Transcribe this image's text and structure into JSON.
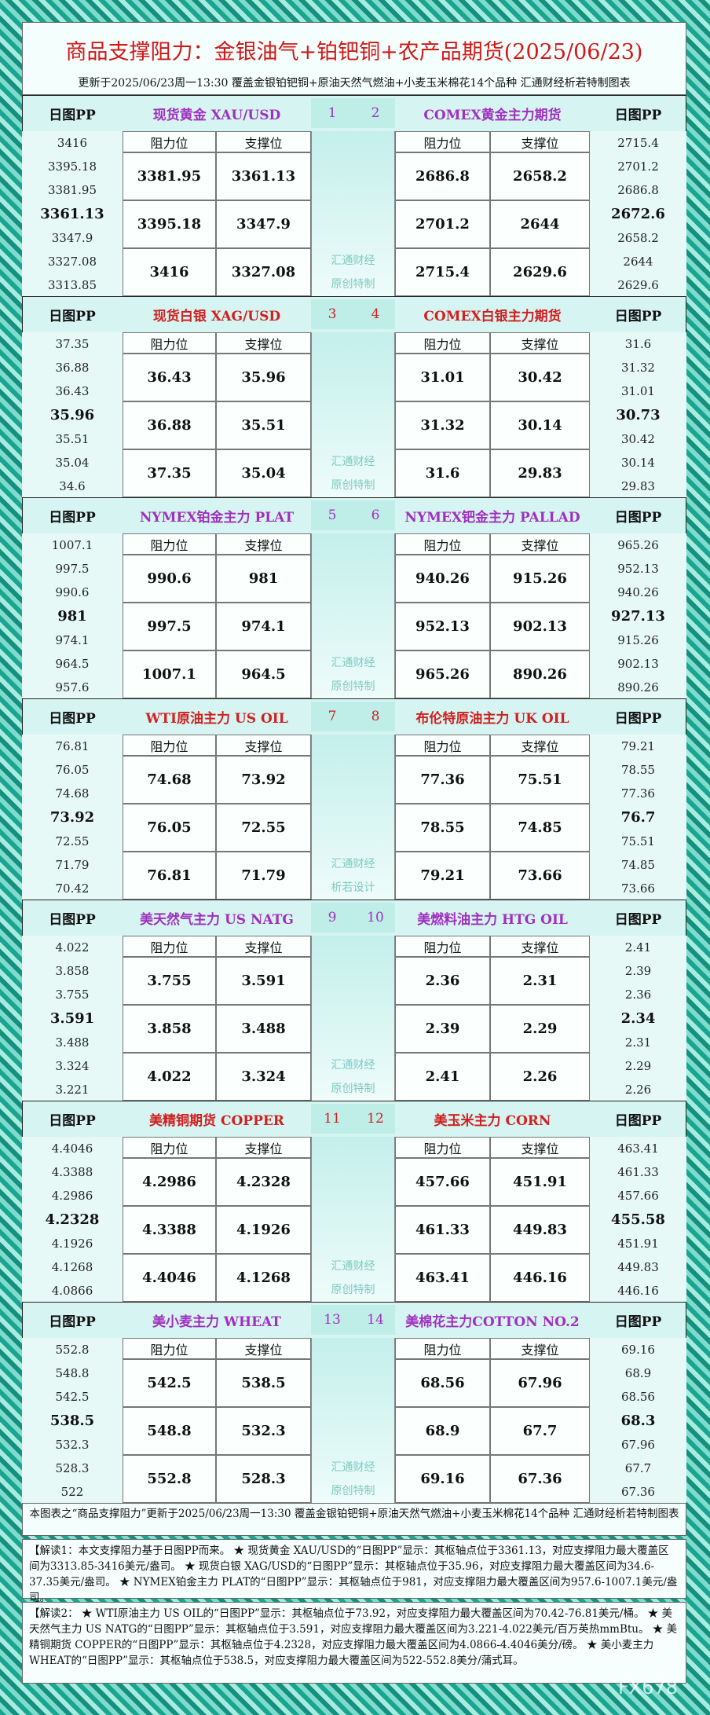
{
  "header": {
    "title": "商品支撑阻力：金银油气+铂钯铜+农产品期货(2025/06/23)",
    "subtitle": "更新于2025/06/23周一13:30 覆盖金银铂钯铜+原油天然气燃油+小麦玉米棉花14个品种 汇通财经析若特制图表"
  },
  "labels": {
    "pp": "日图PP",
    "resistance": "阻力位",
    "support": "支撑位"
  },
  "sections": [
    {
      "color": "#a030c0",
      "numbers": [
        "1",
        "2"
      ],
      "watermark": [
        "汇通财经",
        "原创特制"
      ],
      "left": {
        "name": "现货黄金 XAU/USD",
        "pp": [
          "3416",
          "3395.18",
          "3381.95",
          "3361.13",
          "3347.9",
          "3327.08",
          "3313.85"
        ],
        "rows": [
          [
            "3381.95",
            "3361.13"
          ],
          [
            "3395.18",
            "3347.9"
          ],
          [
            "3416",
            "3327.08"
          ]
        ]
      },
      "right": {
        "name": "COMEX黄金主力期货",
        "pp": [
          "2715.4",
          "2701.2",
          "2686.8",
          "2672.6",
          "2658.2",
          "2644",
          "2629.6"
        ],
        "rows": [
          [
            "2686.8",
            "2658.2"
          ],
          [
            "2701.2",
            "2644"
          ],
          [
            "2715.4",
            "2629.6"
          ]
        ]
      }
    },
    {
      "color": "#d02020",
      "numbers": [
        "3",
        "4"
      ],
      "watermark": [
        "汇通财经",
        "原创特制"
      ],
      "left": {
        "name": "现货白银 XAG/USD",
        "pp": [
          "37.35",
          "36.88",
          "36.43",
          "35.96",
          "35.51",
          "35.04",
          "34.6"
        ],
        "rows": [
          [
            "36.43",
            "35.96"
          ],
          [
            "36.88",
            "35.51"
          ],
          [
            "37.35",
            "35.04"
          ]
        ]
      },
      "right": {
        "name": "COMEX白银主力期货",
        "pp": [
          "31.6",
          "31.32",
          "31.01",
          "30.73",
          "30.42",
          "30.14",
          "29.83"
        ],
        "rows": [
          [
            "31.01",
            "30.42"
          ],
          [
            "31.32",
            "30.14"
          ],
          [
            "31.6",
            "29.83"
          ]
        ]
      }
    },
    {
      "color": "#a030c0",
      "numbers": [
        "5",
        "6"
      ],
      "watermark": [
        "汇通财经",
        "原创特制"
      ],
      "left": {
        "name": "NYMEX铂金主力 PLAT",
        "pp": [
          "1007.1",
          "997.5",
          "990.6",
          "981",
          "974.1",
          "964.5",
          "957.6"
        ],
        "rows": [
          [
            "990.6",
            "981"
          ],
          [
            "997.5",
            "974.1"
          ],
          [
            "1007.1",
            "964.5"
          ]
        ]
      },
      "right": {
        "name": "NYMEX钯金主力 PALLAD",
        "pp": [
          "965.26",
          "952.13",
          "940.26",
          "927.13",
          "915.26",
          "902.13",
          "890.26"
        ],
        "rows": [
          [
            "940.26",
            "915.26"
          ],
          [
            "952.13",
            "902.13"
          ],
          [
            "965.26",
            "890.26"
          ]
        ]
      }
    },
    {
      "color": "#d02020",
      "numbers": [
        "7",
        "8"
      ],
      "watermark": [
        "汇通财经",
        "析若设计"
      ],
      "left": {
        "name": "WTI原油主力 US OIL",
        "pp": [
          "76.81",
          "76.05",
          "74.68",
          "73.92",
          "72.55",
          "71.79",
          "70.42"
        ],
        "rows": [
          [
            "74.68",
            "73.92"
          ],
          [
            "76.05",
            "72.55"
          ],
          [
            "76.81",
            "71.79"
          ]
        ]
      },
      "right": {
        "name": "布伦特原油主力 UK OIL",
        "pp": [
          "79.21",
          "78.55",
          "77.36",
          "76.7",
          "75.51",
          "74.85",
          "73.66"
        ],
        "rows": [
          [
            "77.36",
            "75.51"
          ],
          [
            "78.55",
            "74.85"
          ],
          [
            "79.21",
            "73.66"
          ]
        ]
      }
    },
    {
      "color": "#a030c0",
      "numbers": [
        "9",
        "10"
      ],
      "watermark": [
        "汇通财经",
        "原创特制"
      ],
      "left": {
        "name": "美天然气主力 US NATG",
        "pp": [
          "4.022",
          "3.858",
          "3.755",
          "3.591",
          "3.488",
          "3.324",
          "3.221"
        ],
        "rows": [
          [
            "3.755",
            "3.591"
          ],
          [
            "3.858",
            "3.488"
          ],
          [
            "4.022",
            "3.324"
          ]
        ]
      },
      "right": {
        "name": "美燃料油主力 HTG OIL",
        "pp": [
          "2.41",
          "2.39",
          "2.36",
          "2.34",
          "2.31",
          "2.29",
          "2.26"
        ],
        "rows": [
          [
            "2.36",
            "2.31"
          ],
          [
            "2.39",
            "2.29"
          ],
          [
            "2.41",
            "2.26"
          ]
        ]
      }
    },
    {
      "color": "#d02020",
      "numbers": [
        "11",
        "12"
      ],
      "watermark": [
        "汇通财经",
        "原创特制"
      ],
      "left": {
        "name": "美精铜期货 COPPER",
        "pp": [
          "4.4046",
          "4.3388",
          "4.2986",
          "4.2328",
          "4.1926",
          "4.1268",
          "4.0866"
        ],
        "rows": [
          [
            "4.2986",
            "4.2328"
          ],
          [
            "4.3388",
            "4.1926"
          ],
          [
            "4.4046",
            "4.1268"
          ]
        ]
      },
      "right": {
        "name": "美玉米主力 CORN",
        "pp": [
          "463.41",
          "461.33",
          "457.66",
          "455.58",
          "451.91",
          "449.83",
          "446.16"
        ],
        "rows": [
          [
            "457.66",
            "451.91"
          ],
          [
            "461.33",
            "449.83"
          ],
          [
            "463.41",
            "446.16"
          ]
        ]
      }
    },
    {
      "color": "#a030c0",
      "numbers": [
        "13",
        "14"
      ],
      "watermark": [
        "汇通财经",
        "原创特制"
      ],
      "left": {
        "name": "美小麦主力 WHEAT",
        "pp": [
          "552.8",
          "548.8",
          "542.5",
          "538.5",
          "532.3",
          "528.3",
          "522"
        ],
        "rows": [
          [
            "542.5",
            "538.5"
          ],
          [
            "548.8",
            "532.3"
          ],
          [
            "552.8",
            "528.3"
          ]
        ]
      },
      "right": {
        "name": "美棉花主力COTTON NO.2",
        "pp": [
          "69.16",
          "68.9",
          "68.56",
          "68.3",
          "67.96",
          "67.7",
          "67.36"
        ],
        "rows": [
          [
            "68.56",
            "67.96"
          ],
          [
            "68.9",
            "67.7"
          ],
          [
            "69.16",
            "67.36"
          ]
        ]
      }
    }
  ],
  "footer": {
    "note": "本图表之“商品支撑阻力”更新于2025/06/23周一13:30 覆盖金银铂钯铜+原油天然气燃油+小麦玉米棉花14个品种 汇通财经析若特制图表",
    "analysis1": "【解读1：本文支撑阻力基于日图PP而来。 ★ 现货黄金 XAU/USD的“日图PP”显示：其枢轴点位于3361.13，对应支撑阻力最大覆盖区间为3313.85-3416美元/盎司。 ★ 现货白银 XAG/USD的“日图PP”显示：其枢轴点位于35.96，对应支撑阻力最大覆盖区间为34.6-37.35美元/盎司。 ★ NYMEX铂金主力 PLAT的“日图PP”显示：其枢轴点位于981，对应支撑阻力最大覆盖区间为957.6-1007.1美元/盎司。",
    "analysis2": "【解读2： ★ WTI原油主力 US OIL的“日图PP”显示：其枢轴点位于73.92，对应支撑阻力最大覆盖区间为70.42-76.81美元/桶。 ★ 美天然气主力 US NATG的“日图PP”显示：其枢轴点位于3.591，对应支撑阻力最大覆盖区间为3.221-4.022美元/百万英热mmBtu。 ★ 美精铜期货 COPPER的“日图PP”显示：其枢轴点位于4.2328，对应支撑阻力最大覆盖区间为4.0866-4.4046美分/磅。 ★ 美小麦主力 WHEAT的“日图PP”显示：其枢轴点位于538.5，对应支撑阻力最大覆盖区间为522-552.8美分/蒲式耳。",
    "watermark": "FX678"
  }
}
